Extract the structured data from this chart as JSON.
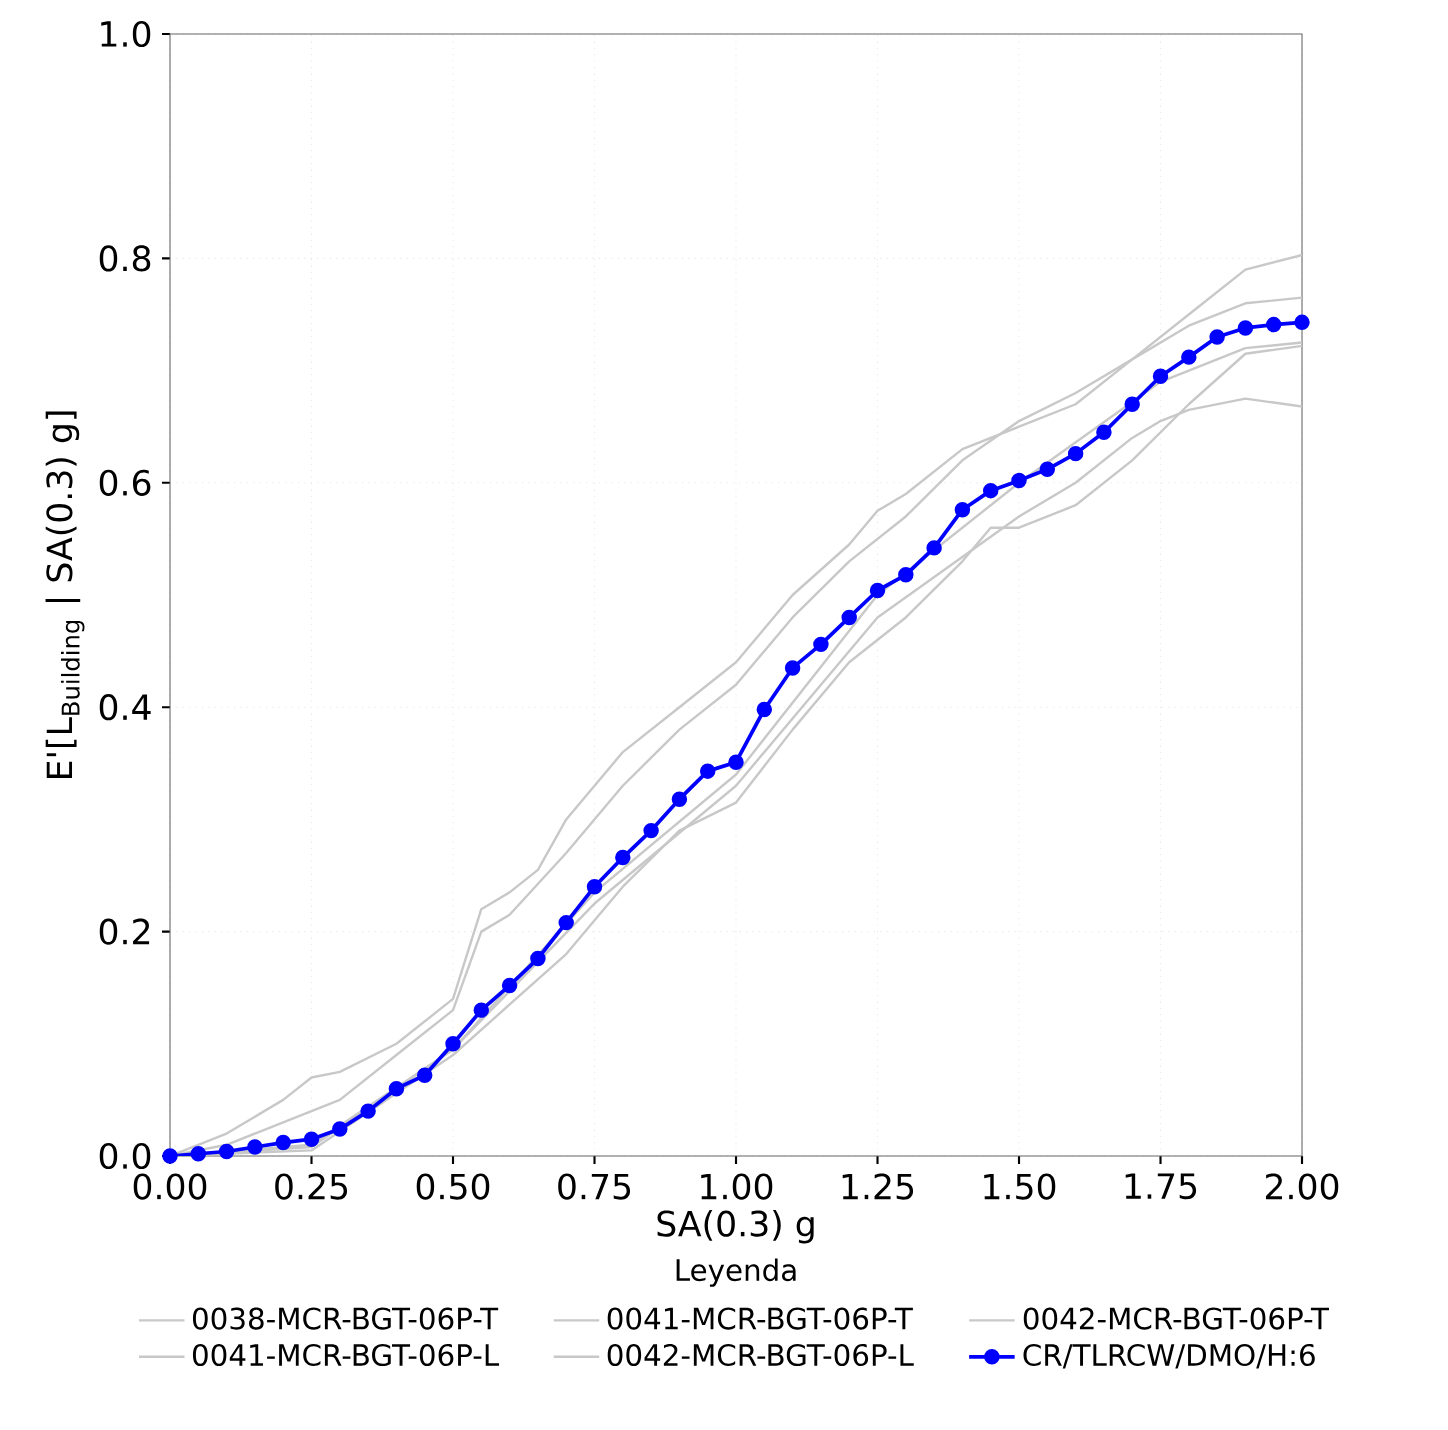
{
  "chart_data": {
    "type": "line",
    "xlabel": "SA(0.3) g",
    "ylabel": "E'[L$_{Building}$ | SA(0.3) g]",
    "legend_title": "Leyenda",
    "xlim": [
      0,
      2
    ],
    "ylim": [
      0,
      1
    ],
    "xticks": [
      {
        "value": 0,
        "label": "0.00"
      },
      {
        "value": 0.25,
        "label": "0.25"
      },
      {
        "value": 0.5,
        "label": "0.50"
      },
      {
        "value": 0.75,
        "label": "0.75"
      },
      {
        "value": 1,
        "label": "1.00"
      },
      {
        "value": 1.25,
        "label": "1.25"
      },
      {
        "value": 1.5,
        "label": "1.50"
      },
      {
        "value": 1.75,
        "label": "1.75"
      },
      {
        "value": 2,
        "label": "2.00"
      }
    ],
    "yticks": [
      {
        "value": 0,
        "label": "0.0"
      },
      {
        "value": 0.2,
        "label": "0.2"
      },
      {
        "value": 0.4,
        "label": "0.4"
      },
      {
        "value": 0.6,
        "label": "0.6"
      },
      {
        "value": 0.8,
        "label": "0.8"
      },
      {
        "value": 1,
        "label": "1.0"
      }
    ],
    "grid": true,
    "legend": "bottom",
    "line_style": "solid",
    "series": [
      {
        "name": "0038-MCR-BGT-06P-T",
        "color": "#c8c8c8",
        "marker": "none",
        "x": [
          0,
          0.1,
          0.2,
          0.25,
          0.3,
          0.4,
          0.5,
          0.55,
          0.6,
          0.65,
          0.7,
          0.8,
          0.9,
          1.0,
          1.1,
          1.2,
          1.25,
          1.3,
          1.4,
          1.5,
          1.6,
          1.7,
          1.8,
          1.9,
          2.0
        ],
        "values": [
          0,
          0.02,
          0.05,
          0.07,
          0.075,
          0.1,
          0.14,
          0.22,
          0.235,
          0.255,
          0.3,
          0.36,
          0.4,
          0.44,
          0.5,
          0.545,
          0.575,
          0.59,
          0.63,
          0.65,
          0.67,
          0.71,
          0.75,
          0.79,
          0.803
        ]
      },
      {
        "name": "0041-MCR-BGT-06P-L",
        "color": "#c8c8c8",
        "marker": "none",
        "x": [
          0,
          0.25,
          0.5,
          0.7,
          0.8,
          0.9,
          1.0,
          1.1,
          1.2,
          1.3,
          1.4,
          1.45,
          1.5,
          1.6,
          1.7,
          1.8,
          1.9,
          2.0
        ],
        "values": [
          0,
          0.005,
          0.09,
          0.18,
          0.24,
          0.29,
          0.315,
          0.38,
          0.44,
          0.48,
          0.53,
          0.56,
          0.56,
          0.58,
          0.62,
          0.67,
          0.715,
          0.722
        ]
      },
      {
        "name": "0041-MCR-BGT-06P-T",
        "color": "#c8c8c8",
        "marker": "none",
        "x": [
          0,
          0.1,
          0.2,
          0.3,
          0.4,
          0.5,
          0.55,
          0.6,
          0.7,
          0.8,
          0.9,
          1.0,
          1.1,
          1.2,
          1.3,
          1.4,
          1.5,
          1.6,
          1.7,
          1.8,
          1.9,
          2.0
        ],
        "values": [
          0,
          0.01,
          0.03,
          0.05,
          0.09,
          0.13,
          0.2,
          0.215,
          0.27,
          0.33,
          0.38,
          0.42,
          0.48,
          0.53,
          0.57,
          0.62,
          0.655,
          0.68,
          0.71,
          0.74,
          0.76,
          0.765
        ]
      },
      {
        "name": "0042-MCR-BGT-06P-L",
        "color": "#c8c8c8",
        "marker": "none",
        "x": [
          0,
          0.25,
          0.5,
          0.75,
          1.0,
          1.25,
          1.5,
          1.75,
          1.9,
          2.0
        ],
        "values": [
          0,
          0.01,
          0.095,
          0.235,
          0.34,
          0.5,
          0.6,
          0.69,
          0.72,
          0.725
        ]
      },
      {
        "name": "0042-MCR-BGT-06P-T",
        "color": "#c8c8c8",
        "marker": "none",
        "x": [
          0,
          0.25,
          0.5,
          0.75,
          1.0,
          1.25,
          1.5,
          1.6,
          1.7,
          1.75,
          1.8,
          1.9,
          2.0
        ],
        "values": [
          0,
          0.008,
          0.095,
          0.225,
          0.33,
          0.48,
          0.57,
          0.6,
          0.64,
          0.655,
          0.665,
          0.675,
          0.668
        ]
      },
      {
        "name": "CR/TLRCW/DMO/H:6",
        "color": "#0000ff",
        "marker": "circle",
        "x": [
          0,
          0.05,
          0.1,
          0.15,
          0.2,
          0.25,
          0.3,
          0.35,
          0.4,
          0.45,
          0.5,
          0.55,
          0.6,
          0.65,
          0.7,
          0.75,
          0.8,
          0.85,
          0.9,
          0.95,
          1.0,
          1.05,
          1.1,
          1.15,
          1.2,
          1.25,
          1.3,
          1.35,
          1.4,
          1.45,
          1.5,
          1.55,
          1.6,
          1.65,
          1.7,
          1.75,
          1.8,
          1.85,
          1.9,
          1.95,
          2.0
        ],
        "values": [
          0,
          0.002,
          0.004,
          0.008,
          0.012,
          0.015,
          0.024,
          0.04,
          0.06,
          0.072,
          0.1,
          0.13,
          0.152,
          0.176,
          0.208,
          0.24,
          0.266,
          0.29,
          0.318,
          0.343,
          0.351,
          0.398,
          0.435,
          0.456,
          0.48,
          0.504,
          0.518,
          0.542,
          0.576,
          0.593,
          0.602,
          0.612,
          0.626,
          0.645,
          0.67,
          0.695,
          0.712,
          0.73,
          0.738,
          0.741,
          0.743
        ]
      }
    ]
  }
}
